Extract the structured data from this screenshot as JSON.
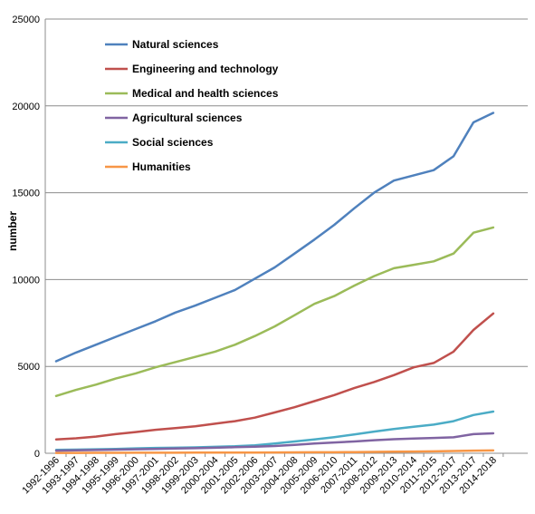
{
  "chart_data": {
    "type": "line",
    "ylabel": "number",
    "xlabel": "",
    "title": "",
    "ylim": [
      0,
      25000
    ],
    "yticks": [
      0,
      5000,
      10000,
      15000,
      20000,
      25000
    ],
    "grid": "horizontal",
    "legend_position": "top-left",
    "categories": [
      "1992-1996",
      "1993-1997",
      "1994-1998",
      "1995-1999",
      "1996-2000",
      "1997-2001",
      "1998-2002",
      "1999-2003",
      "2000-2004",
      "2001-2005",
      "2002-2006",
      "2003-2007",
      "2004-2008",
      "2005-2009",
      "2006-2010",
      "2007-2011",
      "2008-2012",
      "2009-2013",
      "2010-2014",
      "2011-2015",
      "2012-2017",
      "2013-2017",
      "2014-2018"
    ],
    "series": [
      {
        "name": "Natural sciences",
        "color": "#4F81BD",
        "values": [
          5300,
          5800,
          6250,
          6700,
          7150,
          7600,
          8100,
          8500,
          8950,
          9400,
          10050,
          10700,
          11500,
          12300,
          13150,
          14100,
          15000,
          15700,
          16000,
          16300,
          17100,
          19050,
          19600
        ]
      },
      {
        "name": "Engineering and technology",
        "color": "#C0504D",
        "values": [
          800,
          860,
          960,
          1100,
          1220,
          1350,
          1450,
          1550,
          1700,
          1850,
          2050,
          2350,
          2650,
          3000,
          3350,
          3750,
          4100,
          4500,
          4950,
          5200,
          5850,
          7100,
          8050
        ]
      },
      {
        "name": "Medical and health sciences",
        "color": "#9BBB59",
        "values": [
          3300,
          3650,
          3950,
          4300,
          4600,
          4950,
          5250,
          5550,
          5850,
          6250,
          6750,
          7300,
          7950,
          8600,
          9050,
          9650,
          10200,
          10650,
          10850,
          11050,
          11500,
          12700,
          13000
        ]
      },
      {
        "name": "Agricultural sciences",
        "color": "#8064A2",
        "values": [
          150,
          170,
          190,
          210,
          230,
          250,
          270,
          290,
          320,
          350,
          380,
          420,
          480,
          560,
          620,
          680,
          750,
          810,
          850,
          880,
          920,
          1100,
          1150
        ]
      },
      {
        "name": "Social sciences",
        "color": "#4BACC6",
        "values": [
          200,
          210,
          230,
          250,
          280,
          310,
          320,
          340,
          370,
          400,
          460,
          560,
          680,
          800,
          930,
          1080,
          1250,
          1400,
          1530,
          1650,
          1850,
          2200,
          2400
        ]
      },
      {
        "name": "Humanities",
        "color": "#F79646",
        "values": [
          20,
          20,
          25,
          25,
          30,
          30,
          30,
          35,
          35,
          40,
          40,
          45,
          50,
          55,
          60,
          70,
          80,
          90,
          100,
          110,
          130,
          150,
          160
        ]
      }
    ]
  }
}
